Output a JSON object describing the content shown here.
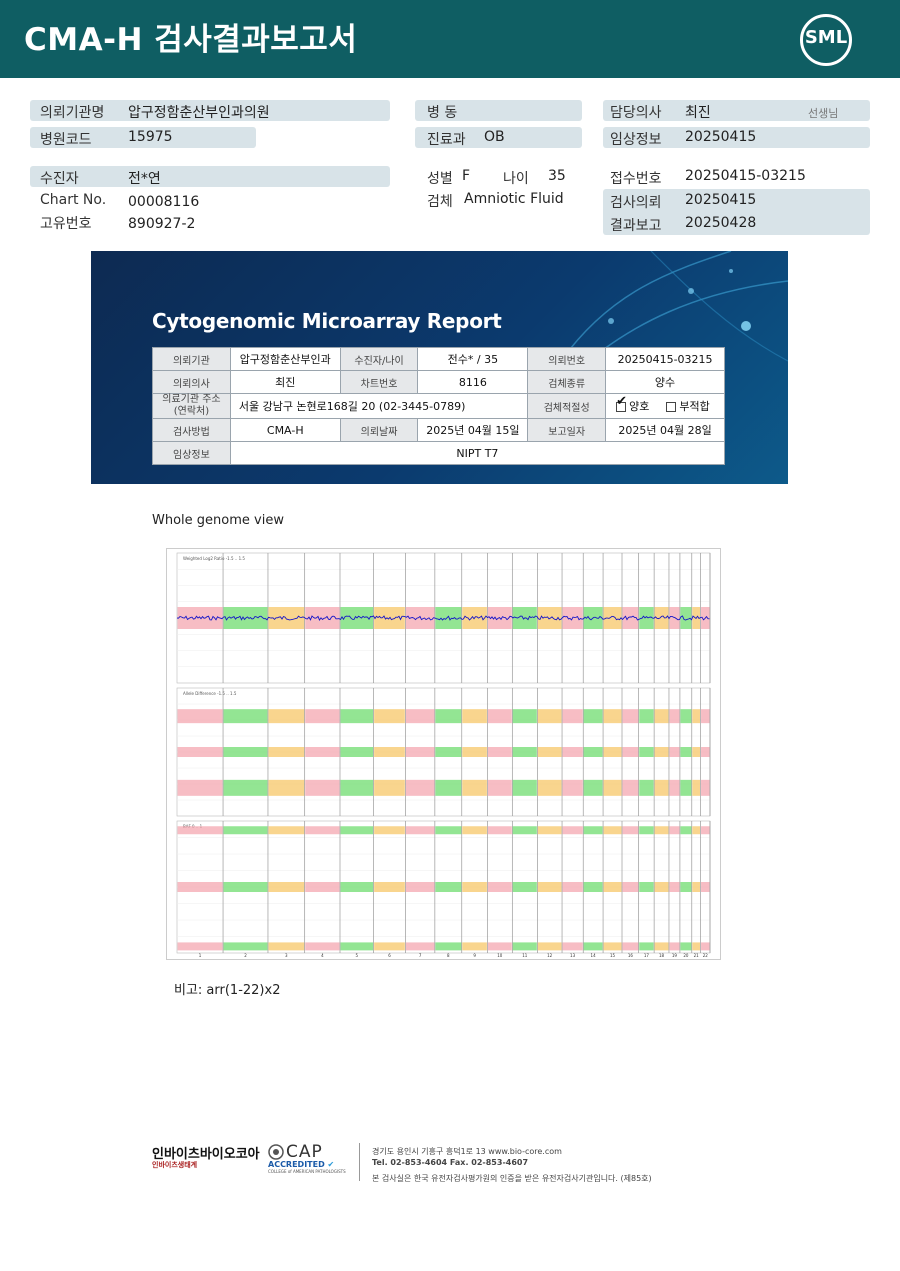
{
  "header": {
    "title": "CMA-H 검사결과보고서",
    "logo": "SML"
  },
  "info": {
    "req_inst_label": "의뢰기관명",
    "req_inst_value": "압구정함춘산부인과의원",
    "hosp_code_label": "병원코드",
    "hosp_code_value": "15975",
    "ward_label": "병 동",
    "dept_label": "진료과",
    "dept_value": "OB",
    "doctor_label": "담당의사",
    "doctor_value": "최진",
    "doctor_suffix": "선생님",
    "clinical_label": "임상정보",
    "clinical_value": "20250415",
    "patient_label": "수진자",
    "patient_value": "전*연",
    "chart_label": "Chart No.",
    "chart_value": "00008116",
    "unique_label": "고유번호",
    "unique_value": "890927-2",
    "sex_label": "성별",
    "sex_value": "F",
    "age_label": "나이",
    "age_value": "35",
    "specimen_label": "검체",
    "specimen_value": "Amniotic Fluid",
    "accession_label": "접수번호",
    "accession_value": "20250415-03215",
    "test_req_label": "검사의뢰",
    "test_req_value": "20250415",
    "result_label": "결과보고",
    "result_value": "20250428"
  },
  "report": {
    "title": "Cytogenomic Microarray Report",
    "r1": [
      "의뢰기관",
      "압구정함춘산부인과",
      "수진자/나이",
      "전수* / 35",
      "의뢰번호",
      "20250415-03215"
    ],
    "r2": [
      "의뢰의사",
      "최진",
      "차트번호",
      "8116",
      "검체종류",
      "양수"
    ],
    "r3_h1": "의료기관 주소",
    "r3_h1b": "(연락처)",
    "r3_v1": "서울 강남구 논현로168길 20 (02-3445-0789)",
    "r3_h2": "검체적절성",
    "r3_good": "양호",
    "r3_bad": "부적합",
    "r4": [
      "검사방법",
      "CMA-H",
      "의뢰날짜",
      "2025년 04월 15일",
      "보고일자",
      "2025년 04월 28일"
    ],
    "r5": [
      "임상정보",
      "NIPT T7"
    ]
  },
  "genome_view": {
    "title": "Whole genome view",
    "panel1_label": "Weighted Log2 Ratio -1.5 .. 1.5",
    "panel2_label": "Allele Difference -1.5 .. 1.5",
    "panel3_label": "BAF 0 .. 1",
    "chromosomes": [
      "1",
      "2",
      "3",
      "4",
      "5",
      "6",
      "7",
      "8",
      "9",
      "10",
      "11",
      "12",
      "13",
      "14",
      "15",
      "16",
      "17",
      "18",
      "19",
      "20",
      "21",
      "22"
    ],
    "chrom_widths": [
      248,
      242,
      198,
      190,
      181,
      171,
      159,
      145,
      138,
      134,
      135,
      133,
      114,
      107,
      102,
      90,
      83,
      80,
      59,
      64,
      47,
      51
    ],
    "colors": [
      "#f4a7b0",
      "#6fdc6f",
      "#f7c768"
    ],
    "trace_color": "#1515c8"
  },
  "note": "비고: arr(1-22)x2",
  "footer": {
    "brand": "인바이츠바이오코아",
    "brand_sub": "인바이츠생태계",
    "cap": "CAP",
    "cap_sub": "ACCREDITED",
    "cap_sub2": "COLLEGE of AMERICAN PATHOLOGISTS",
    "addr": "경기도 용인시 기흥구 흥덕1로 13   www.bio-core.com",
    "tel": "Tel. 02-853-4604   Fax. 02-853-4607",
    "cert": "본 검사실은 한국 유전자검사평가원의 인증을 받은 유전자검사기관입니다. (제85호)"
  }
}
